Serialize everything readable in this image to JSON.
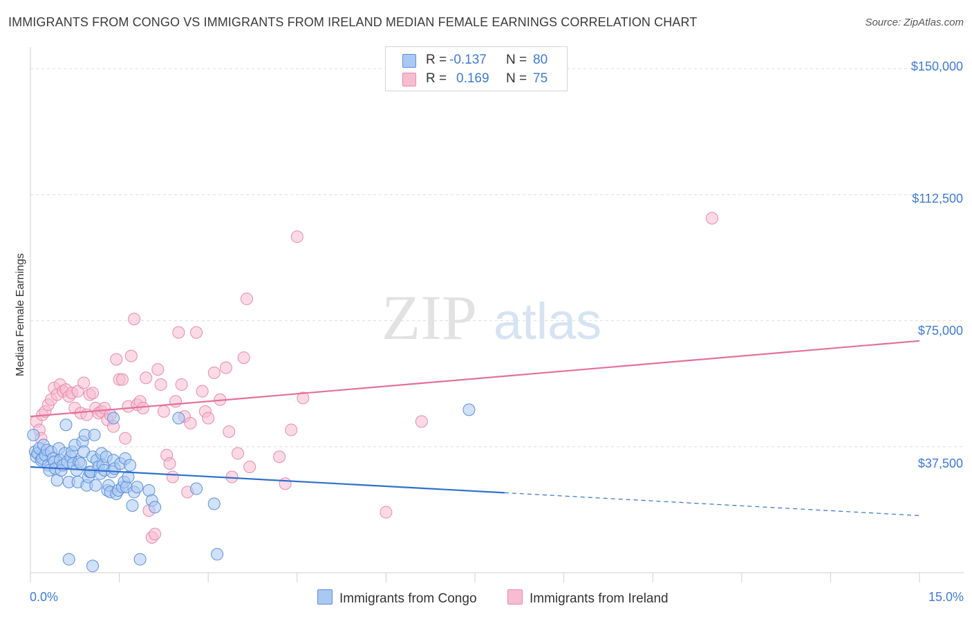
{
  "title": "IMMIGRANTS FROM CONGO VS IMMIGRANTS FROM IRELAND MEDIAN FEMALE EARNINGS CORRELATION CHART",
  "source": "Source: ZipAtlas.com",
  "watermark": {
    "zip": "ZIP",
    "atlas": "atlas"
  },
  "legend": {
    "congo": {
      "r_label": "R =",
      "r_value": "-0.137",
      "n_label": "N =",
      "n_value": "80"
    },
    "ireland": {
      "r_label": "R =",
      "r_value": "0.169",
      "n_label": "N =",
      "n_value": "75"
    }
  },
  "colors": {
    "congo_fill": "#a9c8f2",
    "congo_stroke": "#5b8fd9",
    "congo_line": "#2f6fcf",
    "ireland_fill": "#f7bcd0",
    "ireland_stroke": "#e68aa9",
    "ireland_line": "#e3709a",
    "axis_text": "#3d7bd9",
    "grid": "#dcdcdc"
  },
  "chart_data": {
    "type": "scatter",
    "title": "IMMIGRANTS FROM CONGO VS IMMIGRANTS FROM IRELAND MEDIAN FEMALE EARNINGS CORRELATION CHART",
    "xlabel": "",
    "ylabel": "Median Female Earnings",
    "xlim": [
      0,
      15
    ],
    "ylim": [
      0,
      155000
    ],
    "x_tick_labels": [
      "0.0%",
      "15.0%"
    ],
    "y_ticks": [
      37500,
      75000,
      112500,
      150000
    ],
    "y_tick_labels": [
      "$37,500",
      "$75,000",
      "$112,500",
      "$150,000"
    ],
    "series": [
      {
        "name": "Immigrants from Congo",
        "r": -0.137,
        "n": 80,
        "trend": {
          "x0": 0,
          "y0": 31500,
          "x1": 8.0,
          "y1": 23800,
          "dash_x1": 15,
          "dash_y1": 17000
        },
        "points": [
          [
            0.05,
            41000
          ],
          [
            0.08,
            36000
          ],
          [
            0.1,
            34500
          ],
          [
            0.12,
            35500
          ],
          [
            0.15,
            37000
          ],
          [
            0.18,
            33500
          ],
          [
            0.2,
            34000
          ],
          [
            0.22,
            38000
          ],
          [
            0.25,
            35000
          ],
          [
            0.28,
            36500
          ],
          [
            0.3,
            32000
          ],
          [
            0.32,
            30500
          ],
          [
            0.35,
            36000
          ],
          [
            0.38,
            34000
          ],
          [
            0.4,
            33000
          ],
          [
            0.42,
            31000
          ],
          [
            0.45,
            27500
          ],
          [
            0.48,
            37000
          ],
          [
            0.5,
            33500
          ],
          [
            0.52,
            30500
          ],
          [
            0.55,
            32000
          ],
          [
            0.58,
            35500
          ],
          [
            0.6,
            44000
          ],
          [
            0.62,
            33000
          ],
          [
            0.65,
            27000
          ],
          [
            0.68,
            34500
          ],
          [
            0.7,
            36000
          ],
          [
            0.72,
            32500
          ],
          [
            0.75,
            38000
          ],
          [
            0.78,
            30500
          ],
          [
            0.8,
            27000
          ],
          [
            0.82,
            33000
          ],
          [
            0.85,
            32500
          ],
          [
            0.88,
            39000
          ],
          [
            0.9,
            36000
          ],
          [
            0.92,
            41000
          ],
          [
            0.95,
            26000
          ],
          [
            0.98,
            28500
          ],
          [
            1.0,
            30000
          ],
          [
            1.02,
            30000
          ],
          [
            1.05,
            34500
          ],
          [
            1.08,
            41000
          ],
          [
            1.1,
            26000
          ],
          [
            1.12,
            33500
          ],
          [
            1.15,
            31500
          ],
          [
            1.18,
            29500
          ],
          [
            1.2,
            35500
          ],
          [
            1.22,
            32000
          ],
          [
            1.25,
            30500
          ],
          [
            1.28,
            34500
          ],
          [
            1.3,
            24500
          ],
          [
            1.32,
            26000
          ],
          [
            1.35,
            24000
          ],
          [
            1.38,
            30000
          ],
          [
            1.4,
            33500
          ],
          [
            1.42,
            31000
          ],
          [
            1.45,
            23500
          ],
          [
            1.48,
            24500
          ],
          [
            1.52,
            32500
          ],
          [
            1.55,
            25500
          ],
          [
            1.58,
            27000
          ],
          [
            1.6,
            34000
          ],
          [
            1.62,
            25500
          ],
          [
            1.65,
            28500
          ],
          [
            1.68,
            32000
          ],
          [
            1.72,
            20000
          ],
          [
            1.75,
            24000
          ],
          [
            1.8,
            25500
          ],
          [
            1.85,
            4000
          ],
          [
            2.0,
            24500
          ],
          [
            2.05,
            21500
          ],
          [
            2.1,
            19500
          ],
          [
            2.5,
            46000
          ],
          [
            2.8,
            25000
          ],
          [
            3.1,
            20500
          ],
          [
            3.15,
            5500
          ],
          [
            1.4,
            46000
          ],
          [
            0.65,
            4000
          ],
          [
            7.4,
            48500
          ],
          [
            1.05,
            2000
          ]
        ]
      },
      {
        "name": "Immigrants from Ireland",
        "r": 0.169,
        "n": 75,
        "trend": {
          "x0": 0,
          "y0": 46500,
          "x1": 15,
          "y1": 69000
        },
        "points": [
          [
            0.1,
            45000
          ],
          [
            0.15,
            42500
          ],
          [
            0.18,
            40000
          ],
          [
            0.2,
            47000
          ],
          [
            0.25,
            48000
          ],
          [
            0.3,
            50000
          ],
          [
            0.35,
            51500
          ],
          [
            0.4,
            55000
          ],
          [
            0.45,
            53000
          ],
          [
            0.5,
            56000
          ],
          [
            0.55,
            54000
          ],
          [
            0.6,
            54500
          ],
          [
            0.65,
            52500
          ],
          [
            0.7,
            53500
          ],
          [
            0.75,
            49000
          ],
          [
            0.8,
            54000
          ],
          [
            0.85,
            47500
          ],
          [
            0.9,
            56500
          ],
          [
            0.95,
            47000
          ],
          [
            1.0,
            53000
          ],
          [
            1.05,
            53500
          ],
          [
            1.1,
            49000
          ],
          [
            1.15,
            47500
          ],
          [
            1.2,
            48000
          ],
          [
            1.25,
            49000
          ],
          [
            1.3,
            45500
          ],
          [
            1.35,
            47000
          ],
          [
            1.4,
            43500
          ],
          [
            1.45,
            63500
          ],
          [
            1.5,
            57500
          ],
          [
            1.55,
            57500
          ],
          [
            1.6,
            40000
          ],
          [
            1.65,
            49500
          ],
          [
            1.7,
            64500
          ],
          [
            1.75,
            75500
          ],
          [
            1.8,
            50000
          ],
          [
            1.85,
            51000
          ],
          [
            1.9,
            49000
          ],
          [
            1.95,
            58000
          ],
          [
            2.0,
            18500
          ],
          [
            2.05,
            10500
          ],
          [
            2.1,
            11500
          ],
          [
            2.15,
            60500
          ],
          [
            2.2,
            56000
          ],
          [
            2.25,
            48000
          ],
          [
            2.3,
            35000
          ],
          [
            2.35,
            32500
          ],
          [
            2.4,
            28500
          ],
          [
            2.45,
            51000
          ],
          [
            2.5,
            71500
          ],
          [
            2.55,
            56000
          ],
          [
            2.6,
            46500
          ],
          [
            2.65,
            24000
          ],
          [
            2.7,
            44500
          ],
          [
            2.8,
            71500
          ],
          [
            2.9,
            54000
          ],
          [
            2.95,
            48000
          ],
          [
            3.0,
            46000
          ],
          [
            3.1,
            59500
          ],
          [
            3.2,
            51500
          ],
          [
            3.3,
            61000
          ],
          [
            3.35,
            42000
          ],
          [
            3.4,
            28500
          ],
          [
            3.5,
            35500
          ],
          [
            3.6,
            64000
          ],
          [
            3.65,
            81500
          ],
          [
            3.7,
            31500
          ],
          [
            4.2,
            34500
          ],
          [
            4.3,
            26500
          ],
          [
            4.4,
            42500
          ],
          [
            4.5,
            100000
          ],
          [
            4.6,
            52000
          ],
          [
            6.6,
            45000
          ],
          [
            6.0,
            18000
          ],
          [
            11.5,
            105500
          ]
        ]
      }
    ]
  }
}
